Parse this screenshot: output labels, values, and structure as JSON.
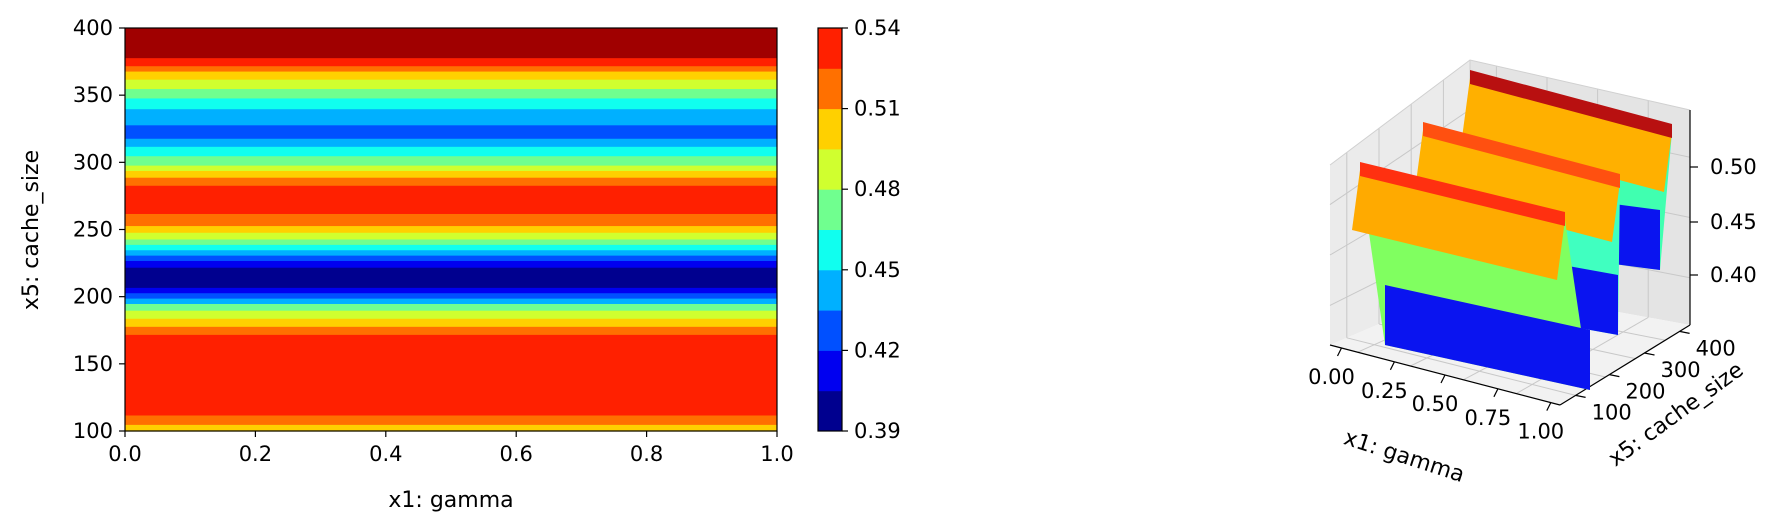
{
  "chart_data": [
    {
      "type": "heatmap",
      "subtype": "filled-contour",
      "title": "",
      "xlabel": "x1: gamma",
      "ylabel": "x5: cache_size",
      "xlim": [
        0.0,
        1.0
      ],
      "ylim": [
        100,
        400
      ],
      "xticks": [
        "0.0",
        "0.2",
        "0.4",
        "0.6",
        "0.8",
        "1.0"
      ],
      "yticks": [
        "100",
        "150",
        "200",
        "250",
        "300",
        "350",
        "400"
      ],
      "colormap": "jet",
      "levels": [
        0.39,
        0.405,
        0.42,
        0.435,
        0.45,
        0.465,
        0.48,
        0.495,
        0.51,
        0.525,
        0.54
      ],
      "level_colors": [
        "#00008f",
        "#0000f0",
        "#0050ff",
        "#00b0ff",
        "#10ffef",
        "#70ff8f",
        "#d0ff2f",
        "#ffd000",
        "#ff7000",
        "#ff2000",
        "#a00000"
      ],
      "bands": [
        {
          "y_from": 100,
          "y_to": 105,
          "level": 7
        },
        {
          "y_from": 105,
          "y_to": 112,
          "level": 8
        },
        {
          "y_from": 112,
          "y_to": 172,
          "level": 9
        },
        {
          "y_from": 172,
          "y_to": 178,
          "level": 8
        },
        {
          "y_from": 178,
          "y_to": 184,
          "level": 7
        },
        {
          "y_from": 184,
          "y_to": 190,
          "level": 6
        },
        {
          "y_from": 190,
          "y_to": 195,
          "level": 5
        },
        {
          "y_from": 195,
          "y_to": 199,
          "level": 3
        },
        {
          "y_from": 199,
          "y_to": 203,
          "level": 2
        },
        {
          "y_from": 203,
          "y_to": 207,
          "level": 1
        },
        {
          "y_from": 207,
          "y_to": 222,
          "level": 0
        },
        {
          "y_from": 222,
          "y_to": 227,
          "level": 1
        },
        {
          "y_from": 227,
          "y_to": 231,
          "level": 2
        },
        {
          "y_from": 231,
          "y_to": 235,
          "level": 3
        },
        {
          "y_from": 235,
          "y_to": 239,
          "level": 4
        },
        {
          "y_from": 239,
          "y_to": 243,
          "level": 5
        },
        {
          "y_from": 243,
          "y_to": 248,
          "level": 6
        },
        {
          "y_from": 248,
          "y_to": 253,
          "level": 7
        },
        {
          "y_from": 253,
          "y_to": 262,
          "level": 8
        },
        {
          "y_from": 262,
          "y_to": 283,
          "level": 9
        },
        {
          "y_from": 283,
          "y_to": 289,
          "level": 8
        },
        {
          "y_from": 289,
          "y_to": 294,
          "level": 7
        },
        {
          "y_from": 294,
          "y_to": 298,
          "level": 6
        },
        {
          "y_from": 298,
          "y_to": 305,
          "level": 5
        },
        {
          "y_from": 305,
          "y_to": 312,
          "level": 4
        },
        {
          "y_from": 312,
          "y_to": 318,
          "level": 3
        },
        {
          "y_from": 318,
          "y_to": 328,
          "level": 2
        },
        {
          "y_from": 328,
          "y_to": 340,
          "level": 3
        },
        {
          "y_from": 340,
          "y_to": 348,
          "level": 4
        },
        {
          "y_from": 348,
          "y_to": 355,
          "level": 5
        },
        {
          "y_from": 355,
          "y_to": 362,
          "level": 6
        },
        {
          "y_from": 362,
          "y_to": 368,
          "level": 7
        },
        {
          "y_from": 368,
          "y_to": 372,
          "level": 8
        },
        {
          "y_from": 372,
          "y_to": 378,
          "level": 9
        },
        {
          "y_from": 378,
          "y_to": 400,
          "level": 10
        }
      ],
      "colorbar": {
        "vmin": 0.39,
        "vmax": 0.54,
        "ticks": [
          0.39,
          0.42,
          0.45,
          0.48,
          0.51,
          0.54
        ],
        "tick_labels": [
          "0.39",
          "0.42",
          "0.45",
          "0.48",
          "0.51",
          "0.54"
        ]
      }
    },
    {
      "type": "surface3d",
      "title": "",
      "xlabel": "x1: gamma",
      "ylabel": "x5: cache_size",
      "xticks": [
        "0.00",
        "0.25",
        "0.50",
        "0.75",
        "1.00"
      ],
      "yticks": [
        "100",
        "200",
        "300",
        "400"
      ],
      "zticks": [
        "0.40",
        "0.45",
        "0.50"
      ],
      "colormap": "jet",
      "grid": true
    }
  ]
}
